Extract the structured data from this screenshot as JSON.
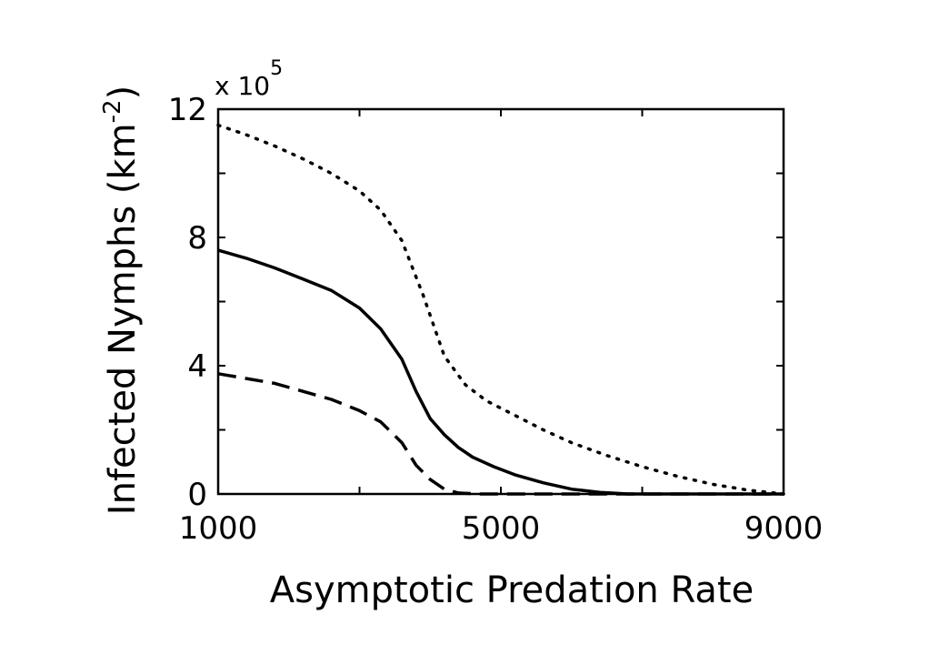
{
  "chart_data": {
    "type": "line",
    "title": "",
    "xlabel": "Asymptotic Predation Rate",
    "ylabel": {
      "main": "Infected Nymphs (km",
      "sup": "-2",
      "close": ")"
    },
    "y_multiplier": {
      "base": "x 10",
      "exp": "5"
    },
    "xlim": [
      1000,
      9000
    ],
    "ylim": [
      0,
      12
    ],
    "x_ticks": [
      1000,
      5000,
      9000
    ],
    "x_tick_labels": [
      "1000",
      "5000",
      "9000"
    ],
    "y_ticks": [
      0,
      4,
      8,
      12
    ],
    "y_tick_labels": [
      "0",
      "4",
      "8",
      "12"
    ],
    "x_minor_ticks": [
      3000,
      7000
    ],
    "y_minor_ticks": [
      2,
      6,
      10
    ],
    "grid": false,
    "series": [
      {
        "style": "dotted",
        "x": [
          1000,
          1400,
          1800,
          2200,
          2600,
          3000,
          3300,
          3600,
          3900,
          4200,
          4500,
          4800,
          5200,
          5600,
          6000,
          6500,
          7000,
          7500,
          8000,
          8500,
          9000
        ],
        "y": [
          11.5,
          11.2,
          10.85,
          10.45,
          10.0,
          9.45,
          8.85,
          7.9,
          6.2,
          4.3,
          3.4,
          2.9,
          2.45,
          2.0,
          1.6,
          1.2,
          0.85,
          0.55,
          0.3,
          0.12,
          0.0
        ]
      },
      {
        "style": "solid",
        "x": [
          1000,
          1400,
          1800,
          2200,
          2600,
          3000,
          3300,
          3600,
          3800,
          4000,
          4200,
          4400,
          4600,
          4900,
          5200,
          5600,
          6000,
          6400,
          6800,
          7500,
          8200,
          9000
        ],
        "y": [
          7.6,
          7.35,
          7.05,
          6.7,
          6.35,
          5.8,
          5.15,
          4.2,
          3.2,
          2.35,
          1.85,
          1.45,
          1.15,
          0.85,
          0.6,
          0.35,
          0.15,
          0.05,
          0.0,
          0.0,
          0.0,
          0.0
        ]
      },
      {
        "style": "dashed",
        "x": [
          1000,
          1400,
          1800,
          2200,
          2600,
          3000,
          3300,
          3600,
          3800,
          4000,
          4200,
          4400,
          4700,
          5000,
          6000,
          7000,
          8000,
          9000
        ],
        "y": [
          3.75,
          3.6,
          3.45,
          3.2,
          2.95,
          2.6,
          2.25,
          1.6,
          0.9,
          0.45,
          0.15,
          0.03,
          0.0,
          0.0,
          0.0,
          0.0,
          0.0,
          0.0
        ]
      }
    ]
  }
}
